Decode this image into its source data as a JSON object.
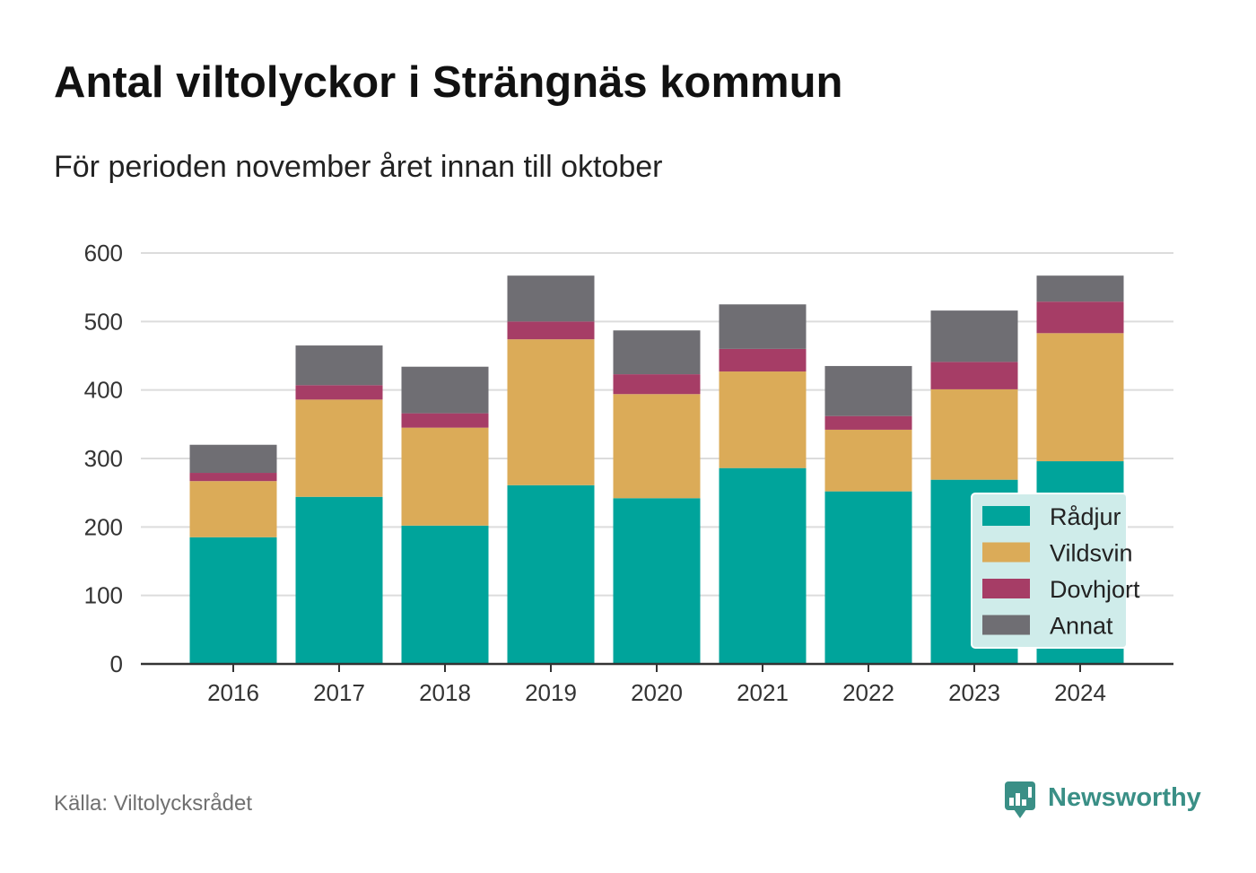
{
  "chart_data": {
    "type": "bar",
    "stacked": true,
    "title": "Antal viltolyckor i Strängnäs kommun",
    "subtitle": "För perioden november året innan till oktober",
    "categories": [
      "2016",
      "2017",
      "2018",
      "2019",
      "2020",
      "2021",
      "2022",
      "2023",
      "2024"
    ],
    "series": [
      {
        "name": "Rådjur",
        "color": "#00a49b",
        "values": [
          185,
          244,
          202,
          261,
          242,
          286,
          252,
          269,
          296
        ]
      },
      {
        "name": "Vildsvin",
        "color": "#dbab58",
        "values": [
          82,
          142,
          143,
          213,
          152,
          141,
          90,
          132,
          187
        ]
      },
      {
        "name": "Dovhjort",
        "color": "#a63d66",
        "values": [
          12,
          21,
          21,
          26,
          29,
          33,
          20,
          40,
          46
        ]
      },
      {
        "name": "Annat",
        "color": "#6f6e73",
        "values": [
          41,
          58,
          68,
          67,
          64,
          65,
          73,
          75,
          38
        ]
      }
    ],
    "ylim": [
      0,
      600
    ],
    "yticks": [
      0,
      100,
      200,
      300,
      400,
      500,
      600
    ],
    "grid": true,
    "legend": "bottom-right"
  },
  "source": "Källa: Viltolycksrådet",
  "logo": {
    "text": "Newsworthy",
    "icon": "newsworthy-logo-icon",
    "color": "#3a8f86"
  }
}
